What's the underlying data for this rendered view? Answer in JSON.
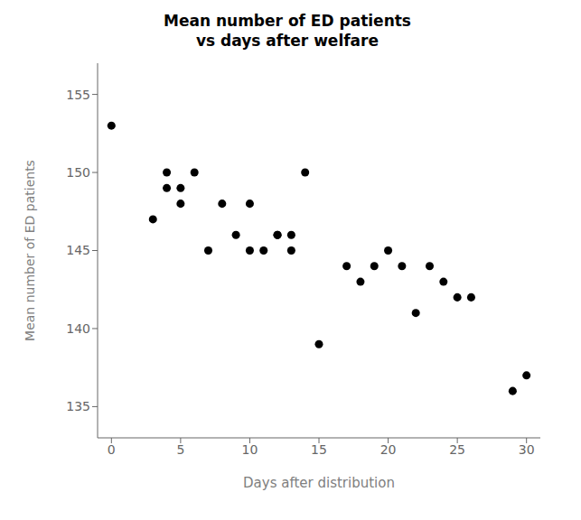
{
  "chart_data": {
    "type": "scatter",
    "title": "Mean number of ED patients\nvs days after welfare",
    "xlabel": "Days after distribution",
    "ylabel": "Mean number of ED patients",
    "x": [
      0,
      3,
      4,
      4,
      5,
      5,
      6,
      7,
      8,
      9,
      10,
      10,
      11,
      12,
      12,
      13,
      13,
      14,
      15,
      17,
      18,
      19,
      20,
      21,
      22,
      23,
      24,
      25,
      26,
      29,
      30
    ],
    "y": [
      153,
      147,
      149,
      150,
      148,
      149,
      150,
      145,
      148,
      146,
      145,
      148,
      145,
      146,
      146,
      145,
      146,
      150,
      139,
      144,
      143,
      144,
      145,
      144,
      141,
      144,
      143,
      142,
      142,
      136,
      137
    ],
    "xlim": [
      -1,
      31
    ],
    "ylim": [
      133,
      157
    ],
    "xticks": [
      0,
      5,
      10,
      15,
      20,
      25,
      30
    ],
    "yticks": [
      135,
      140,
      145,
      150,
      155
    ],
    "color": "#000000",
    "grid": false
  }
}
